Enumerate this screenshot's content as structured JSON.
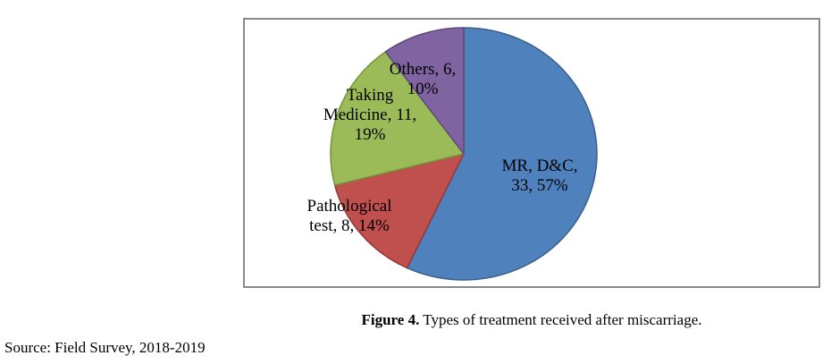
{
  "caption": {
    "figure_label": "Figure 4.",
    "text": " Types of treatment received after miscarriage."
  },
  "source_note": "Source: Field Survey, 2018-2019",
  "chart_data": {
    "type": "pie",
    "title": "Types of treatment received after miscarriage",
    "start_angle_deg": 0,
    "direction": "clockwise",
    "legend_position": "none",
    "label_format": "name, count, percent",
    "slices": [
      {
        "name": "MR, D&C",
        "count": 33,
        "pct": 57,
        "color": "#4F81BD",
        "stroke": "#3A5F8A",
        "label_text": "MR, D&C,\n33, 57%"
      },
      {
        "name": "Pathological test",
        "count": 8,
        "pct": 14,
        "color": "#C0504D",
        "stroke": "#953735",
        "label_text": "Pathological\ntest, 8, 14%"
      },
      {
        "name": "Taking Medicine",
        "count": 11,
        "pct": 19,
        "color": "#9BBB59",
        "stroke": "#76923C",
        "label_text": "Taking\nMedicine, 11,\n19%"
      },
      {
        "name": "Others",
        "count": 6,
        "pct": 10,
        "color": "#8064A2",
        "stroke": "#5F497A",
        "label_text": "Others, 6,\n10%"
      }
    ]
  }
}
